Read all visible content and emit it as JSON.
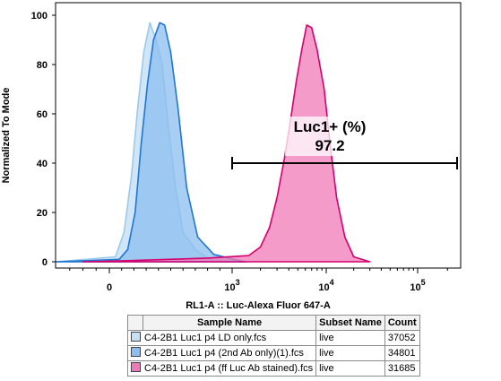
{
  "chart_data": {
    "type": "area",
    "xlabel": "RL1-A :: Luc-Alexa Fluor   647-A",
    "ylabel": "Normalized To Mode",
    "xscale": "biexponential",
    "yticks": [
      "0",
      "20",
      "40",
      "60",
      "80",
      "100"
    ],
    "xticks": [
      {
        "value": 0,
        "base": "0",
        "exp": ""
      },
      {
        "value": 1000,
        "base": "10",
        "exp": "3"
      },
      {
        "value": 10000,
        "base": "10",
        "exp": "4"
      },
      {
        "value": 100000,
        "base": "10",
        "exp": "5"
      }
    ],
    "ylim": [
      0,
      105
    ],
    "grid": false,
    "gate": {
      "name": "Luc1+ (%)",
      "value": "97.2",
      "range": [
        1000,
        250000
      ],
      "y": 40
    },
    "series": [
      {
        "name": "C4-2B1 Luc1 p4 LD only.fcs",
        "fill": "#c8e0f5",
        "stroke": "#9ccaea",
        "x": [
          -400,
          50,
          120,
          180,
          230,
          280,
          330,
          380,
          430,
          480,
          540,
          600,
          700,
          820,
          1000,
          1300
        ],
        "y": [
          0,
          2,
          12,
          35,
          62,
          85,
          97,
          90,
          80,
          55,
          30,
          12,
          5,
          1,
          0.5,
          0
        ]
      },
      {
        "name": "C4-2B1 Luc1 p4 (2nd Ab only)(1).fcs",
        "fill": "#8cbef0",
        "stroke": "#1f77d4",
        "x": [
          -400,
          80,
          150,
          210,
          260,
          310,
          360,
          410,
          450,
          500,
          560,
          630,
          720,
          850,
          1050,
          1400
        ],
        "y": [
          0,
          1,
          5,
          20,
          48,
          72,
          90,
          97,
          96,
          85,
          62,
          30,
          10,
          3,
          1,
          0
        ]
      },
      {
        "name": "C4-2B1 Luc1 p4 (ff Luc Ab stained).fcs",
        "fill": "#f07ab8",
        "stroke": "#d4006f",
        "x": [
          -200,
          200,
          800,
          1500,
          2000,
          2500,
          3000,
          3600,
          4200,
          4800,
          5500,
          6200,
          7000,
          8000,
          9500,
          11000,
          13000,
          16000,
          20000,
          30000
        ],
        "y": [
          0,
          0.5,
          1.5,
          2.5,
          6,
          14,
          26,
          42,
          58,
          73,
          86,
          96,
          95,
          86,
          70,
          48,
          26,
          10,
          2,
          0
        ]
      }
    ]
  },
  "legend": {
    "headers": [
      "",
      "Sample Name",
      "Subset Name",
      "Count"
    ],
    "rows": [
      {
        "color": "#c8e0f5",
        "sample": "C4-2B1 Luc1 p4 LD only.fcs",
        "subset": "live",
        "count": "37052"
      },
      {
        "color": "#8cbef0",
        "sample": "C4-2B1 Luc1 p4 (2nd Ab only)(1).fcs",
        "subset": "live",
        "count": "34801"
      },
      {
        "color": "#f07ab8",
        "sample": "C4-2B1 Luc1 p4 (ff Luc Ab stained).fcs",
        "subset": "live",
        "count": "31685"
      }
    ]
  }
}
